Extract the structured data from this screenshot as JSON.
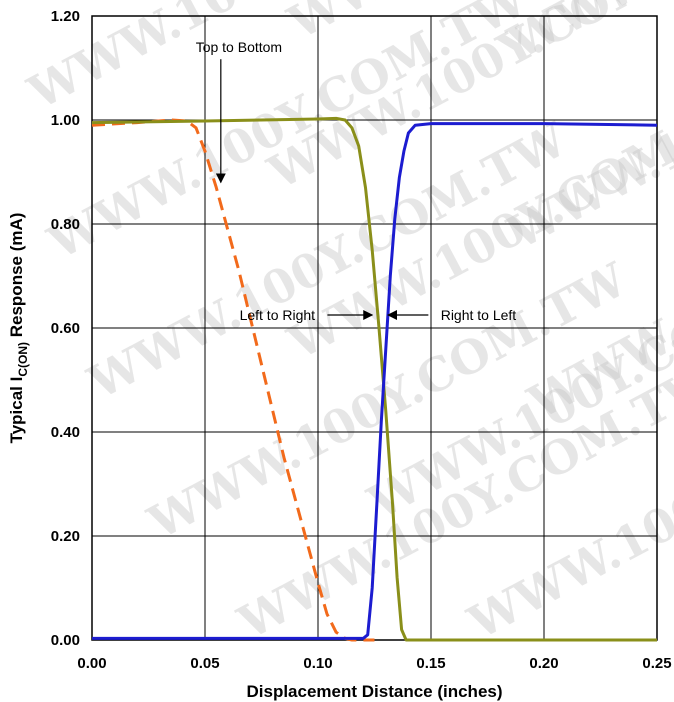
{
  "chart_data": {
    "type": "line",
    "xlabel": "Displacement Distance (inches)",
    "ylabel": {
      "prefix": "Typical I",
      "subscript": "C(ON)",
      "suffix": " Response (mA)"
    },
    "xlim": [
      0,
      0.25
    ],
    "ylim": [
      0,
      1.2
    ],
    "x_ticks": [
      "0.00",
      "0.05",
      "0.10",
      "0.15",
      "0.20",
      "0.25"
    ],
    "y_ticks": [
      "0.00",
      "0.20",
      "0.40",
      "0.60",
      "0.80",
      "1.00",
      "1.20"
    ],
    "grid": true,
    "series": [
      {
        "name": "Top to Bottom",
        "color": "#f26a1b",
        "dash": "dashed",
        "points": [
          [
            0,
            0.99
          ],
          [
            0.02,
            0.995
          ],
          [
            0.035,
            1.0
          ],
          [
            0.042,
            0.998
          ],
          [
            0.046,
            0.985
          ],
          [
            0.05,
            0.94
          ],
          [
            0.055,
            0.87
          ],
          [
            0.06,
            0.79
          ],
          [
            0.065,
            0.71
          ],
          [
            0.07,
            0.62
          ],
          [
            0.075,
            0.53
          ],
          [
            0.08,
            0.44
          ],
          [
            0.085,
            0.35
          ],
          [
            0.09,
            0.27
          ],
          [
            0.095,
            0.19
          ],
          [
            0.1,
            0.11
          ],
          [
            0.104,
            0.05
          ],
          [
            0.108,
            0.015
          ],
          [
            0.112,
            0.003
          ],
          [
            0.115,
            0.0
          ],
          [
            0.125,
            0.0
          ]
        ]
      },
      {
        "name": "Left to Right",
        "color": "#8a8f1a",
        "dash": "solid",
        "points": [
          [
            0,
            0.995
          ],
          [
            0.05,
            0.998
          ],
          [
            0.1,
            1.002
          ],
          [
            0.108,
            1.003
          ],
          [
            0.112,
            1.0
          ],
          [
            0.115,
            0.985
          ],
          [
            0.118,
            0.95
          ],
          [
            0.121,
            0.87
          ],
          [
            0.124,
            0.75
          ],
          [
            0.127,
            0.6
          ],
          [
            0.13,
            0.44
          ],
          [
            0.133,
            0.26
          ],
          [
            0.135,
            0.12
          ],
          [
            0.137,
            0.02
          ],
          [
            0.139,
            0.0
          ],
          [
            0.25,
            0.0
          ]
        ]
      },
      {
        "name": "Right to Left",
        "color": "#1c1cd0",
        "dash": "solid",
        "points": [
          [
            0,
            0.003
          ],
          [
            0.1,
            0.003
          ],
          [
            0.12,
            0.003
          ],
          [
            0.122,
            0.01
          ],
          [
            0.124,
            0.1
          ],
          [
            0.126,
            0.26
          ],
          [
            0.128,
            0.42
          ],
          [
            0.13,
            0.56
          ],
          [
            0.132,
            0.7
          ],
          [
            0.134,
            0.81
          ],
          [
            0.136,
            0.89
          ],
          [
            0.138,
            0.94
          ],
          [
            0.14,
            0.975
          ],
          [
            0.143,
            0.99
          ],
          [
            0.15,
            0.993
          ],
          [
            0.2,
            0.993
          ],
          [
            0.25,
            0.99
          ]
        ]
      }
    ],
    "annotations": [
      {
        "text": "Top to Bottom",
        "label_at": [
          0.065,
          1.14
        ],
        "arrow_to": [
          0.057,
          0.88
        ]
      },
      {
        "text": "Left to Right",
        "label_at": [
          0.082,
          0.625
        ],
        "arrow_to": [
          0.124,
          0.625
        ]
      },
      {
        "text": "Right to Left",
        "label_at": [
          0.171,
          0.625
        ],
        "arrow_to": [
          0.131,
          0.625
        ]
      }
    ]
  },
  "watermark": "WWW.100Y.COM.TW"
}
